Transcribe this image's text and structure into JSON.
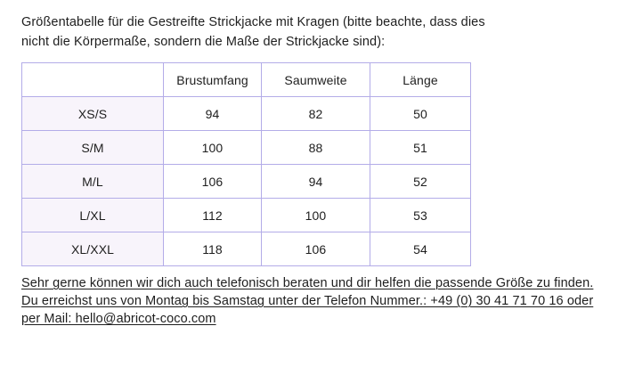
{
  "intro": {
    "lines": [
      "Größentabelle für die Gestreifte Strickjacke mit Kragen (bitte beachte, dass dies",
      "nicht die Körpermaße, sondern die Maße der Strickjacke sind):"
    ]
  },
  "size_table": {
    "headers": [
      "",
      "Brustumfang",
      "Saumweite",
      "Länge"
    ],
    "rows": [
      {
        "label": "XS/S",
        "cells": [
          "94",
          "82",
          "50"
        ]
      },
      {
        "label": "S/M",
        "cells": [
          "100",
          "88",
          "51"
        ]
      },
      {
        "label": "M/L",
        "cells": [
          "106",
          "94",
          "52"
        ]
      },
      {
        "label": "L/XL",
        "cells": [
          "112",
          "100",
          "53"
        ]
      },
      {
        "label": "XL/XXL",
        "cells": [
          "118",
          "106",
          "54"
        ]
      }
    ]
  },
  "contact": {
    "lines": [
      "Sehr gerne können wir dich auch telefonisch beraten und dir helfen die passende Größe zu finden.",
      "Du erreichst uns von Montag bis Samstag unter der Telefon Nummer.: +49 (0) 30 41 71 70 16 oder",
      "per Mail: hello@abricot-coco.com"
    ],
    "phone": "+49 (0) 30 41 71 70 16",
    "email": "hello@abricot-coco.com"
  },
  "colors": {
    "table_border": "#b3ace8",
    "label_cell_bg": "#f8f4fb",
    "text": "#1e1e1e",
    "page_bg": "#ffffff"
  }
}
